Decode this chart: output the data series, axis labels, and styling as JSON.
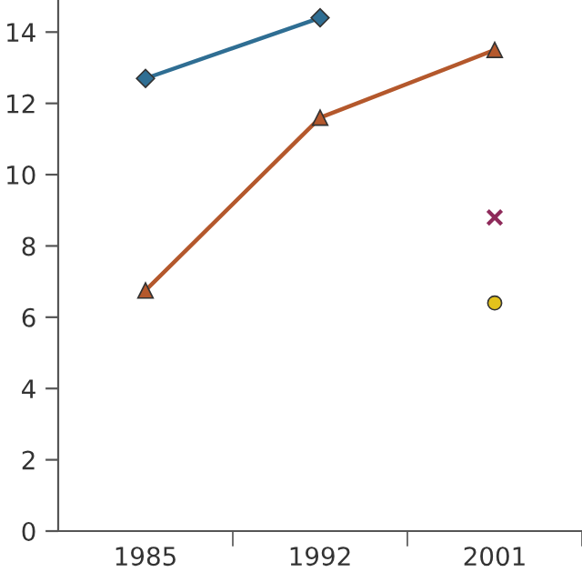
{
  "chart_data": {
    "type": "line",
    "categories": [
      "1985",
      "1992",
      "2001"
    ],
    "series": [
      {
        "color": "#2f6e93",
        "marker": "diamond",
        "values": [
          12.7,
          14.4,
          null
        ]
      },
      {
        "color": "#b4582c",
        "marker": "triangle",
        "values": [
          6.75,
          11.6,
          13.5
        ]
      },
      {
        "type": "scatter",
        "color": "#8e2a5a",
        "marker": "cross",
        "values": [
          null,
          null,
          8.8
        ]
      },
      {
        "type": "scatter",
        "color": "#e3c21c",
        "marker": "circle",
        "values": [
          null,
          null,
          6.4
        ]
      }
    ],
    "ylim": [
      0,
      14.9
    ],
    "yticks": [
      0,
      2,
      4,
      6,
      8,
      10,
      12,
      14
    ],
    "grid": false,
    "legend": false
  }
}
